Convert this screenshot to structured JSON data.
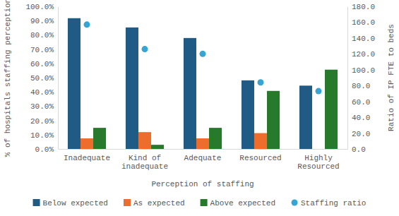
{
  "chart_data": {
    "type": "bar",
    "categories": [
      "Inadequate",
      "Kind of inadequate",
      "Adequate",
      "Resourced",
      "Highly Resourced"
    ],
    "series": [
      {
        "name": "Below expected",
        "color": "#1f5b84",
        "values": [
          91.7,
          85.2,
          77.8,
          48.1,
          44.4
        ]
      },
      {
        "name": "As expected",
        "color": "#ed6d2c",
        "values": [
          7.4,
          11.8,
          7.4,
          11.1,
          0
        ]
      },
      {
        "name": "Above expected",
        "color": "#27792b",
        "values": [
          14.8,
          2.9,
          14.8,
          40.7,
          55.6
        ]
      },
      {
        "name": "Staffing ratio",
        "type": "scatter",
        "marker": "circle",
        "axis": "y2",
        "color": "#35a6d3",
        "values": [
          157,
          126,
          120,
          84,
          73
        ]
      }
    ],
    "x_label": "Perception of staffing",
    "y_label": "% of hospitals staffing perception",
    "y2_label": "Ratio of IP FTE to beds",
    "ylim": [
      0,
      100
    ],
    "yticks": [
      {
        "value": 0,
        "label": "0.0%"
      },
      {
        "value": 10,
        "label": "10.0%"
      },
      {
        "value": 20,
        "label": "20.0%"
      },
      {
        "value": 30,
        "label": "30.0%"
      },
      {
        "value": 40,
        "label": "40.0%"
      },
      {
        "value": 50,
        "label": "50.0%"
      },
      {
        "value": 60,
        "label": "60.0%"
      },
      {
        "value": 70,
        "label": "70.0%"
      },
      {
        "value": 80,
        "label": "80.0%"
      },
      {
        "value": 90,
        "label": "90.0%"
      },
      {
        "value": 100,
        "label": "100.0%"
      }
    ],
    "y2lim": [
      0,
      180
    ],
    "y2ticks": [
      {
        "value": 0,
        "label": "0.0"
      },
      {
        "value": 20,
        "label": "20.0"
      },
      {
        "value": 40,
        "label": "40.0"
      },
      {
        "value": 60,
        "label": "60.0"
      },
      {
        "value": 80,
        "label": "80.0"
      },
      {
        "value": 100,
        "label": "100.0"
      },
      {
        "value": 120,
        "label": "120.0"
      },
      {
        "value": 140,
        "label": "140.0"
      },
      {
        "value": 160,
        "label": "160.0"
      },
      {
        "value": 180,
        "label": "180.0"
      }
    ],
    "legend": "bottom",
    "grid": false
  }
}
